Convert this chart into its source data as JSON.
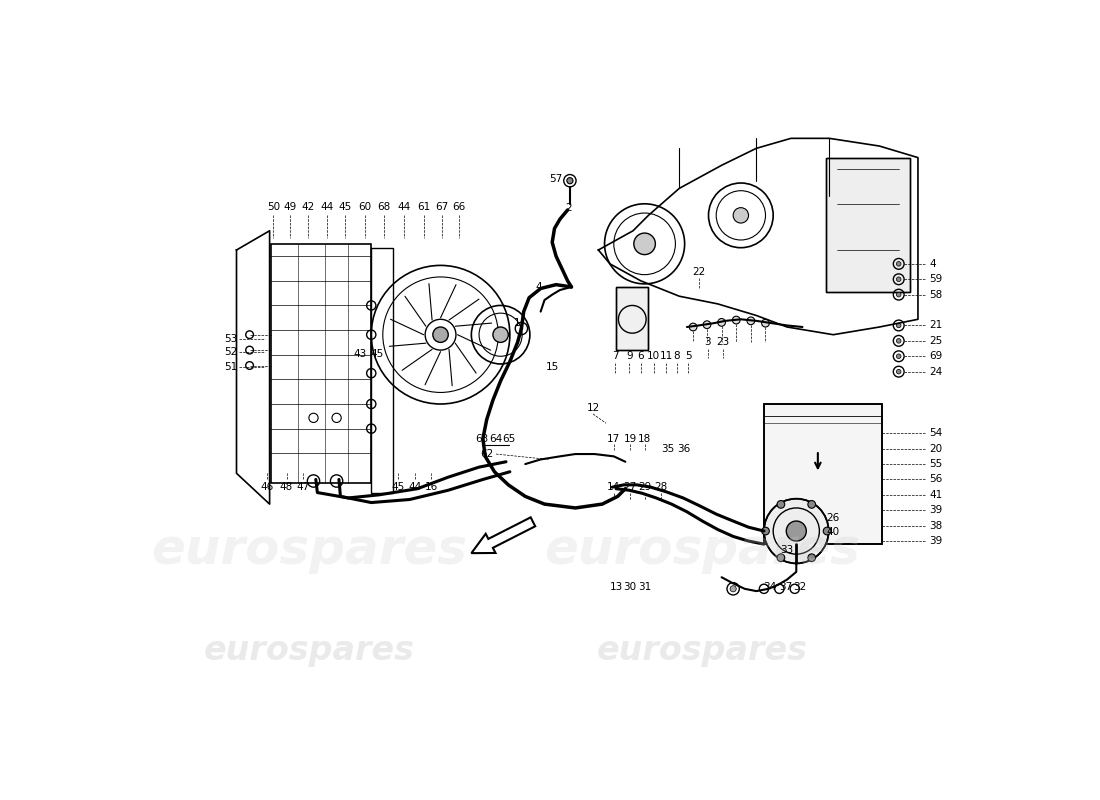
{
  "bg_color": "#ffffff",
  "watermark_text": "eurospares",
  "line_color": "#000000",
  "label_color": "#000000"
}
